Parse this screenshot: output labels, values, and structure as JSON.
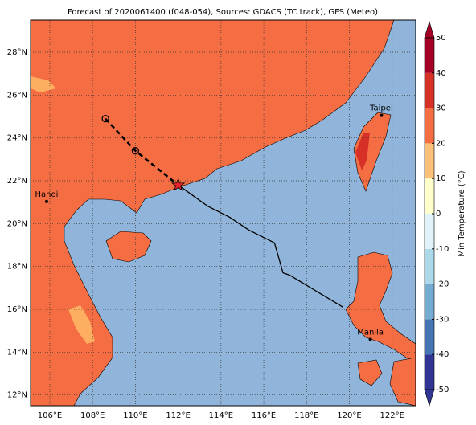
{
  "title": "Forecast of 2020061400 (f048-054), Sources: GDACS (TC track), GFS (Meteo)",
  "map": {
    "xlim": [
      105.1,
      123.1
    ],
    "ylim": [
      11.5,
      29.5
    ],
    "xticks": [
      {
        "value": 106,
        "label": "106°E"
      },
      {
        "value": 108,
        "label": "108°E"
      },
      {
        "value": 110,
        "label": "110°E"
      },
      {
        "value": 112,
        "label": "112°E"
      },
      {
        "value": 114,
        "label": "114°E"
      },
      {
        "value": 116,
        "label": "116°E"
      },
      {
        "value": 118,
        "label": "118°E"
      },
      {
        "value": 120,
        "label": "120°E"
      },
      {
        "value": 122,
        "label": "122°E"
      }
    ],
    "yticks": [
      {
        "value": 12,
        "label": "12°N"
      },
      {
        "value": 14,
        "label": "14°N"
      },
      {
        "value": 16,
        "label": "16°N"
      },
      {
        "value": 18,
        "label": "18°N"
      },
      {
        "value": 20,
        "label": "20°N"
      },
      {
        "value": 22,
        "label": "22°N"
      },
      {
        "value": 24,
        "label": "24°N"
      },
      {
        "value": 26,
        "label": "26°N"
      },
      {
        "value": 28,
        "label": "28°N"
      }
    ],
    "grid": true
  },
  "track": {
    "observed": {
      "lon": [
        112.0,
        113.4,
        114.4,
        115.3,
        116.5,
        116.9,
        117.2,
        119.7
      ],
      "lat": [
        21.8,
        20.8,
        20.3,
        19.7,
        19.1,
        17.7,
        17.6,
        16.1
      ]
    },
    "forecast": {
      "lon": [
        108.6,
        110.0,
        112.0
      ],
      "lat": [
        24.9,
        23.4,
        21.8
      ]
    }
  },
  "cities": [
    {
      "name": "Hanoi",
      "lon": 105.85,
      "lat": 21.03
    },
    {
      "name": "Taipei",
      "lon": 121.5,
      "lat": 25.05
    },
    {
      "name": "Manila",
      "lon": 120.98,
      "lat": 14.6
    }
  ],
  "colorbar": {
    "label": "Min Temperature (°C)",
    "lim": [
      -50,
      50
    ],
    "ticks": [
      -50,
      -40,
      -30,
      -20,
      -10,
      0,
      10,
      20,
      30,
      40,
      50
    ],
    "colors": [
      "#313695",
      "#4575b4",
      "#74add1",
      "#abd9e9",
      "#e0f3f8",
      "#ffffcc",
      "#fdc07a",
      "#f46d43",
      "#d73027",
      "#a50026"
    ]
  }
}
